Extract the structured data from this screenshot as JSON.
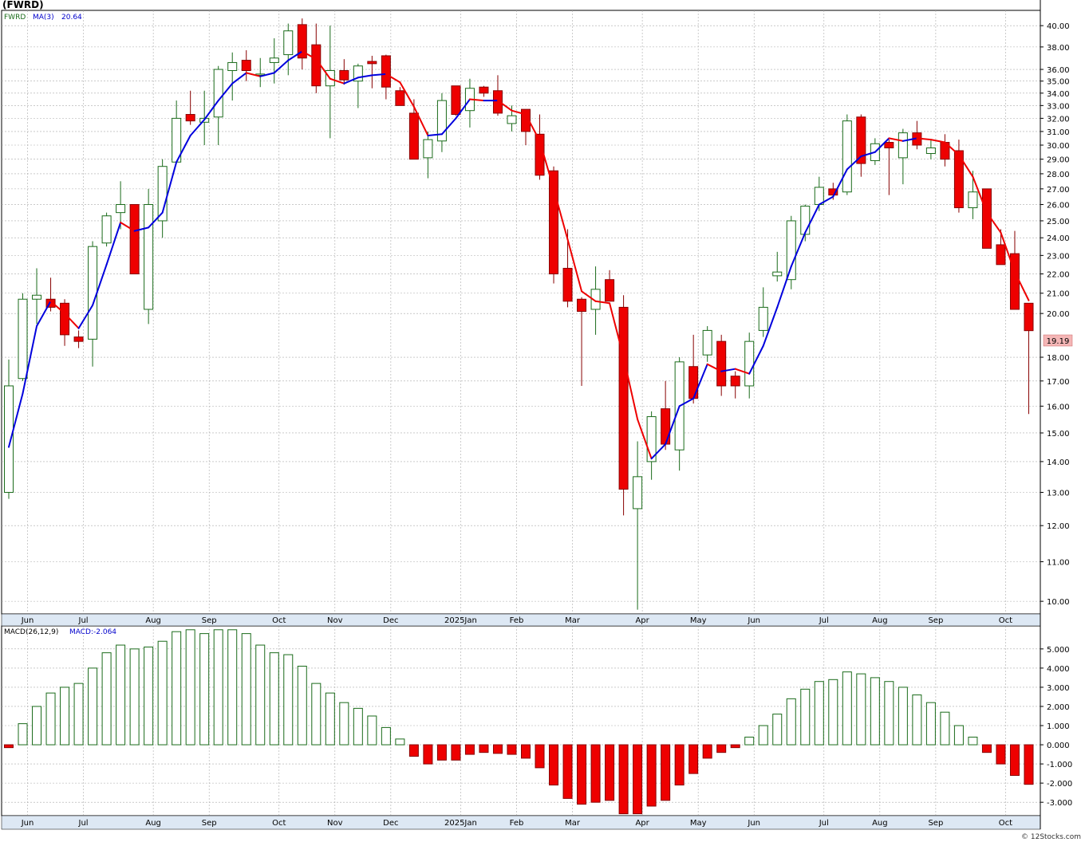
{
  "title": "(FWRD)",
  "watermark": "© 12Stocks.com",
  "colors": {
    "up_body": "#ffffff",
    "up_border": "#1a6b1a",
    "down_body": "#ee0000",
    "down_border": "#880000",
    "ma_up": "#0000dd",
    "ma_down": "#ee0000",
    "grid": "#aaaaaa",
    "price_label_bg": "#f4b6b6",
    "label_green": "#1a6b1a",
    "label_blue": "#0000cc"
  },
  "price_panel": {
    "legend": {
      "symbol": "FWRD",
      "ma_label": "MA(3)",
      "ma_value": "20.64"
    },
    "last_price": "19.19",
    "y_ticks": [
      "40.00",
      "38.00",
      "36.00",
      "35.00",
      "34.00",
      "33.00",
      "32.00",
      "31.00",
      "30.00",
      "29.00",
      "28.00",
      "27.00",
      "26.00",
      "25.00",
      "24.00",
      "23.00",
      "22.00",
      "21.00",
      "20.00",
      "18.00",
      "17.00",
      "16.00",
      "15.00",
      "14.00",
      "13.00",
      "12.00",
      "11.00",
      "10.00"
    ],
    "scale": "log"
  },
  "macd_panel": {
    "legend": {
      "label": "MACD(26,12,9)",
      "value_label": "MACD:-2.064"
    },
    "y_ticks": [
      "5.000",
      "4.000",
      "3.000",
      "2.000",
      "1.000",
      "0.000",
      "-1.000",
      "-2.000",
      "-3.000"
    ]
  },
  "x_labels": [
    "Jun",
    "Jul",
    "Aug",
    "Sep",
    "Oct",
    "Nov",
    "Dec",
    "2025Jan",
    "Feb",
    "Mar",
    "Apr",
    "May",
    "Jun",
    "Jul",
    "Aug",
    "Sep",
    "Oct"
  ],
  "chart_data": {
    "type": "candlestick",
    "ticker": "FWRD",
    "y_scale": "log",
    "ylim": [
      9.7,
      41.5
    ],
    "ohlc": [
      {
        "o": 13.0,
        "h": 17.9,
        "l": 12.8,
        "c": 16.8
      },
      {
        "o": 17.1,
        "h": 21.0,
        "l": 17.0,
        "c": 20.7
      },
      {
        "o": 20.7,
        "h": 22.3,
        "l": 19.5,
        "c": 20.9
      },
      {
        "o": 20.7,
        "h": 21.8,
        "l": 20.1,
        "c": 20.3
      },
      {
        "o": 20.5,
        "h": 20.7,
        "l": 18.5,
        "c": 19.0
      },
      {
        "o": 18.9,
        "h": 19.2,
        "l": 18.4,
        "c": 18.7
      },
      {
        "o": 18.8,
        "h": 23.8,
        "l": 17.6,
        "c": 23.5
      },
      {
        "o": 23.7,
        "h": 25.5,
        "l": 23.5,
        "c": 25.3
      },
      {
        "o": 25.5,
        "h": 27.5,
        "l": 24.5,
        "c": 26.0
      },
      {
        "o": 26.0,
        "h": 26.0,
        "l": 22.0,
        "c": 22.0
      },
      {
        "o": 20.2,
        "h": 27.0,
        "l": 19.5,
        "c": 26.0
      },
      {
        "o": 25.0,
        "h": 29.0,
        "l": 24.0,
        "c": 28.5
      },
      {
        "o": 28.8,
        "h": 33.4,
        "l": 28.8,
        "c": 32.0
      },
      {
        "o": 32.3,
        "h": 34.2,
        "l": 31.5,
        "c": 31.8
      },
      {
        "o": 31.7,
        "h": 34.2,
        "l": 30.0,
        "c": 32.0
      },
      {
        "o": 32.1,
        "h": 36.3,
        "l": 30.0,
        "c": 36.0
      },
      {
        "o": 35.9,
        "h": 37.5,
        "l": 33.4,
        "c": 36.6
      },
      {
        "o": 36.8,
        "h": 37.7,
        "l": 35.0,
        "c": 35.9
      },
      {
        "o": 35.5,
        "h": 37.0,
        "l": 34.5,
        "c": 35.6
      },
      {
        "o": 36.6,
        "h": 38.8,
        "l": 34.8,
        "c": 37.0
      },
      {
        "o": 37.3,
        "h": 40.2,
        "l": 35.5,
        "c": 39.5
      },
      {
        "o": 40.1,
        "h": 40.7,
        "l": 36.0,
        "c": 37.0
      },
      {
        "o": 38.2,
        "h": 40.2,
        "l": 34.0,
        "c": 34.6
      },
      {
        "o": 34.6,
        "h": 40.0,
        "l": 30.5,
        "c": 35.9
      },
      {
        "o": 35.9,
        "h": 36.9,
        "l": 34.7,
        "c": 35.1
      },
      {
        "o": 35.0,
        "h": 36.5,
        "l": 32.8,
        "c": 36.3
      },
      {
        "o": 36.7,
        "h": 37.2,
        "l": 34.4,
        "c": 36.5
      },
      {
        "o": 37.2,
        "h": 37.3,
        "l": 33.5,
        "c": 34.5
      },
      {
        "o": 34.2,
        "h": 34.5,
        "l": 33.0,
        "c": 33.0
      },
      {
        "o": 32.4,
        "h": 33.5,
        "l": 29.0,
        "c": 29.0
      },
      {
        "o": 29.1,
        "h": 31.0,
        "l": 27.7,
        "c": 30.4
      },
      {
        "o": 30.3,
        "h": 34.0,
        "l": 29.5,
        "c": 33.4
      },
      {
        "o": 34.6,
        "h": 34.6,
        "l": 32.2,
        "c": 32.3
      },
      {
        "o": 32.6,
        "h": 35.2,
        "l": 31.3,
        "c": 34.4
      },
      {
        "o": 34.5,
        "h": 34.6,
        "l": 33.7,
        "c": 34.0
      },
      {
        "o": 34.2,
        "h": 35.5,
        "l": 32.2,
        "c": 32.4
      },
      {
        "o": 31.6,
        "h": 33.0,
        "l": 31.0,
        "c": 32.2
      },
      {
        "o": 32.7,
        "h": 32.7,
        "l": 30.0,
        "c": 31.0
      },
      {
        "o": 30.8,
        "h": 32.3,
        "l": 27.6,
        "c": 27.9
      },
      {
        "o": 28.2,
        "h": 28.5,
        "l": 21.5,
        "c": 22.0
      },
      {
        "o": 22.3,
        "h": 24.5,
        "l": 20.3,
        "c": 20.6
      },
      {
        "o": 20.7,
        "h": 20.8,
        "l": 16.8,
        "c": 20.1
      },
      {
        "o": 20.2,
        "h": 22.4,
        "l": 19.0,
        "c": 21.2
      },
      {
        "o": 21.7,
        "h": 22.2,
        "l": 20.6,
        "c": 20.6
      },
      {
        "o": 20.3,
        "h": 20.9,
        "l": 12.3,
        "c": 13.1
      },
      {
        "o": 12.5,
        "h": 14.7,
        "l": 9.8,
        "c": 13.5
      },
      {
        "o": 14.0,
        "h": 15.8,
        "l": 13.4,
        "c": 15.6
      },
      {
        "o": 15.9,
        "h": 17.0,
        "l": 14.4,
        "c": 14.6
      },
      {
        "o": 14.4,
        "h": 18.0,
        "l": 13.7,
        "c": 17.8
      },
      {
        "o": 17.6,
        "h": 19.0,
        "l": 16.1,
        "c": 16.3
      },
      {
        "o": 18.1,
        "h": 19.4,
        "l": 17.8,
        "c": 19.2
      },
      {
        "o": 18.7,
        "h": 19.0,
        "l": 16.4,
        "c": 16.8
      },
      {
        "o": 17.2,
        "h": 17.4,
        "l": 16.3,
        "c": 16.8
      },
      {
        "o": 16.8,
        "h": 19.1,
        "l": 16.3,
        "c": 18.7
      },
      {
        "o": 19.2,
        "h": 21.3,
        "l": 18.9,
        "c": 20.3
      },
      {
        "o": 21.9,
        "h": 23.2,
        "l": 21.6,
        "c": 22.1
      },
      {
        "o": 21.7,
        "h": 25.3,
        "l": 21.2,
        "c": 25.0
      },
      {
        "o": 24.2,
        "h": 26.0,
        "l": 23.8,
        "c": 25.9
      },
      {
        "o": 26.0,
        "h": 27.8,
        "l": 25.6,
        "c": 27.1
      },
      {
        "o": 27.0,
        "h": 27.4,
        "l": 26.3,
        "c": 26.6
      },
      {
        "o": 26.8,
        "h": 32.3,
        "l": 26.6,
        "c": 31.8
      },
      {
        "o": 32.1,
        "h": 32.3,
        "l": 27.8,
        "c": 28.7
      },
      {
        "o": 28.9,
        "h": 30.5,
        "l": 28.6,
        "c": 30.1
      },
      {
        "o": 30.2,
        "h": 30.4,
        "l": 26.6,
        "c": 29.8
      },
      {
        "o": 29.1,
        "h": 31.2,
        "l": 27.3,
        "c": 30.9
      },
      {
        "o": 30.9,
        "h": 31.8,
        "l": 29.7,
        "c": 30.0
      },
      {
        "o": 29.4,
        "h": 30.4,
        "l": 29.0,
        "c": 29.8
      },
      {
        "o": 30.2,
        "h": 30.8,
        "l": 28.5,
        "c": 29.0
      },
      {
        "o": 29.6,
        "h": 30.4,
        "l": 25.5,
        "c": 25.8
      },
      {
        "o": 25.8,
        "h": 28.2,
        "l": 25.1,
        "c": 26.8
      },
      {
        "o": 27.0,
        "h": 27.0,
        "l": 23.4,
        "c": 23.4
      },
      {
        "o": 23.6,
        "h": 24.5,
        "l": 22.5,
        "c": 22.5
      },
      {
        "o": 23.1,
        "h": 24.4,
        "l": 20.2,
        "c": 20.2
      },
      {
        "o": 20.5,
        "h": 20.5,
        "l": 15.7,
        "c": 19.19
      }
    ],
    "ma3": [
      14.5,
      16.5,
      19.4,
      20.6,
      20.0,
      19.3,
      20.4,
      22.5,
      24.9,
      24.4,
      24.6,
      25.5,
      28.8,
      30.7,
      31.9,
      33.4,
      34.8,
      35.7,
      35.4,
      35.7,
      36.8,
      37.6,
      36.9,
      35.2,
      34.8,
      35.3,
      35.5,
      35.6,
      34.9,
      32.9,
      30.7,
      30.8,
      32.0,
      33.5,
      33.4,
      33.4,
      32.6,
      32.3,
      30.3,
      27.0,
      23.9,
      21.1,
      20.6,
      20.5,
      18.0,
      15.5,
      14.1,
      14.6,
      16.0,
      16.3,
      17.7,
      17.4,
      17.5,
      17.3,
      18.5,
      20.3,
      22.4,
      24.3,
      26.0,
      26.5,
      28.3,
      29.2,
      29.5,
      30.5,
      30.3,
      30.5,
      30.4,
      30.2,
      29.3,
      27.8,
      25.5,
      24.3,
      22.1,
      20.64
    ],
    "macd": [
      -0.15,
      1.1,
      2.0,
      2.7,
      3.0,
      3.2,
      4.0,
      4.8,
      5.2,
      5.0,
      5.1,
      5.4,
      5.9,
      6.0,
      5.8,
      6.0,
      6.0,
      5.8,
      5.2,
      4.8,
      4.7,
      4.1,
      3.2,
      2.7,
      2.2,
      1.9,
      1.5,
      0.9,
      0.3,
      -0.6,
      -1.0,
      -0.8,
      -0.8,
      -0.5,
      -0.4,
      -0.45,
      -0.5,
      -0.7,
      -1.2,
      -2.1,
      -2.8,
      -3.1,
      -3.0,
      -2.9,
      -3.6,
      -3.6,
      -3.2,
      -2.9,
      -2.1,
      -1.5,
      -0.7,
      -0.4,
      -0.15,
      0.4,
      1.0,
      1.6,
      2.4,
      2.9,
      3.3,
      3.4,
      3.8,
      3.7,
      3.5,
      3.3,
      3.0,
      2.6,
      2.2,
      1.7,
      1.0,
      0.4,
      -0.4,
      -1.0,
      -1.6,
      -2.064
    ],
    "macd_ylim": [
      -3.7,
      6.2
    ],
    "x_month_labels": [
      "Jun",
      "Jul",
      "Aug",
      "Sep",
      "Oct",
      "Nov",
      "Dec",
      "2025Jan",
      "Feb",
      "Mar",
      "Apr",
      "May",
      "Jun",
      "Jul",
      "Aug",
      "Sep",
      "Oct"
    ]
  }
}
